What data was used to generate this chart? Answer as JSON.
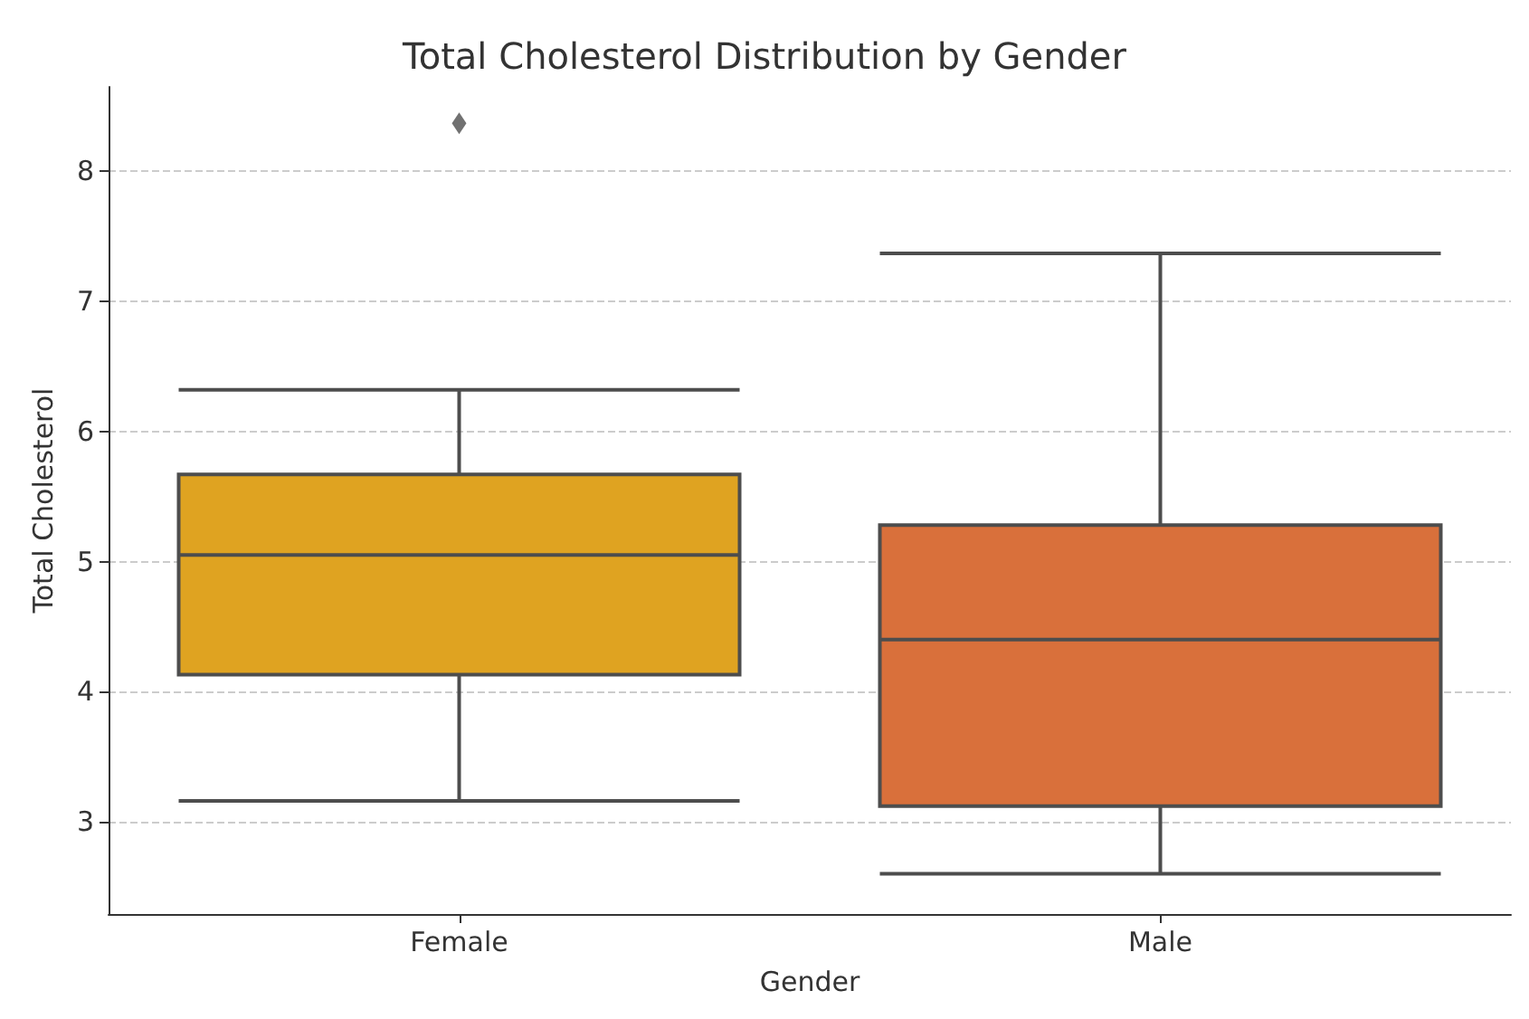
{
  "chart_data": {
    "type": "box",
    "title": "Total Cholesterol Distribution by Gender",
    "xlabel": "Gender",
    "ylabel": "Total Cholesterol",
    "categories": [
      "Female",
      "Male"
    ],
    "boxes": [
      {
        "low": 3.16,
        "q1": 4.13,
        "median": 5.05,
        "q3": 5.67,
        "high": 6.32,
        "outliers": [
          8.37
        ]
      },
      {
        "low": 2.6,
        "q1": 3.12,
        "median": 4.4,
        "q3": 5.28,
        "high": 7.37
      }
    ],
    "colors": [
      "#dfa321",
      "#d9703b"
    ],
    "ylim": [
      2.29,
      8.65
    ],
    "yticks": [
      3,
      4,
      5,
      6,
      7,
      8
    ],
    "grid": "y",
    "marker": "diamond"
  }
}
